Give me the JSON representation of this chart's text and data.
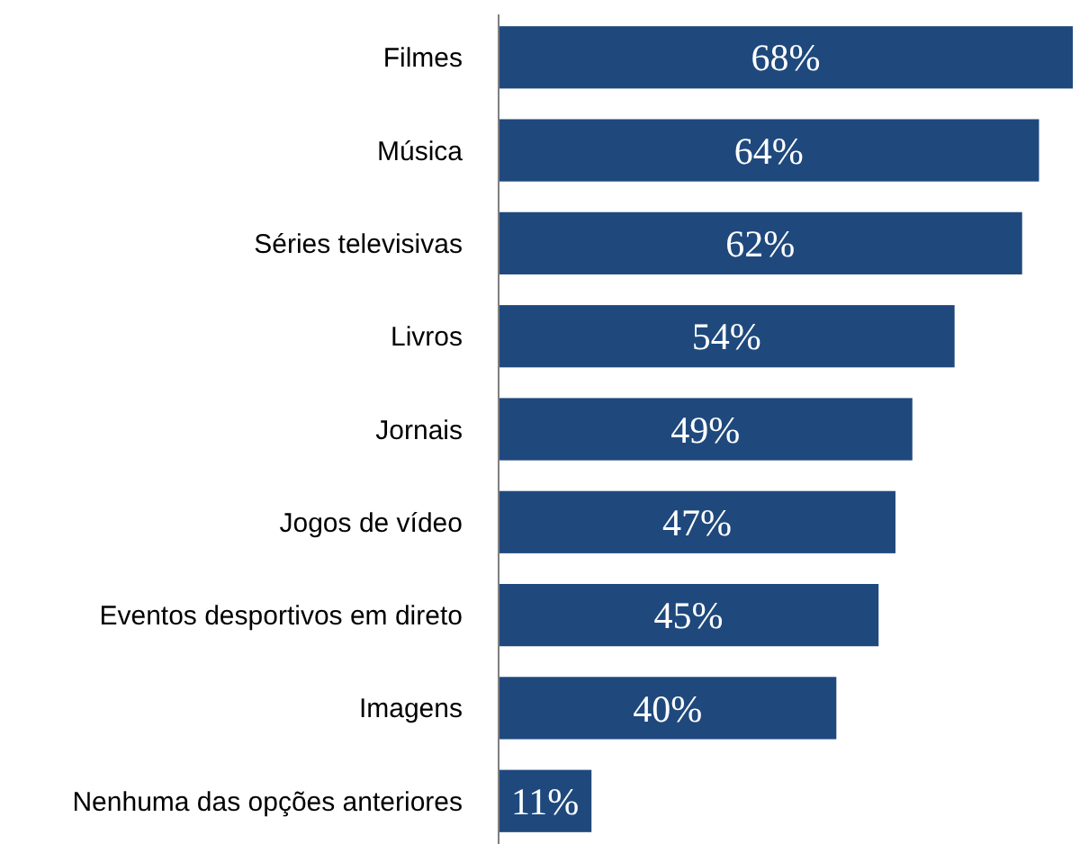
{
  "chart_data": {
    "type": "bar",
    "orientation": "horizontal",
    "categories": [
      "Filmes",
      "Música",
      "Séries televisivas",
      "Livros",
      "Jornais",
      "Jogos de vídeo",
      "Eventos desportivos em direto",
      "Imagens",
      "Nenhuma das opções anteriores"
    ],
    "values": [
      68,
      64,
      62,
      54,
      49,
      47,
      45,
      40,
      11
    ],
    "value_labels": [
      "68%",
      "64%",
      "62%",
      "54%",
      "49%",
      "47%",
      "45%",
      "40%",
      "11%"
    ],
    "color": "#1f497d"
  }
}
